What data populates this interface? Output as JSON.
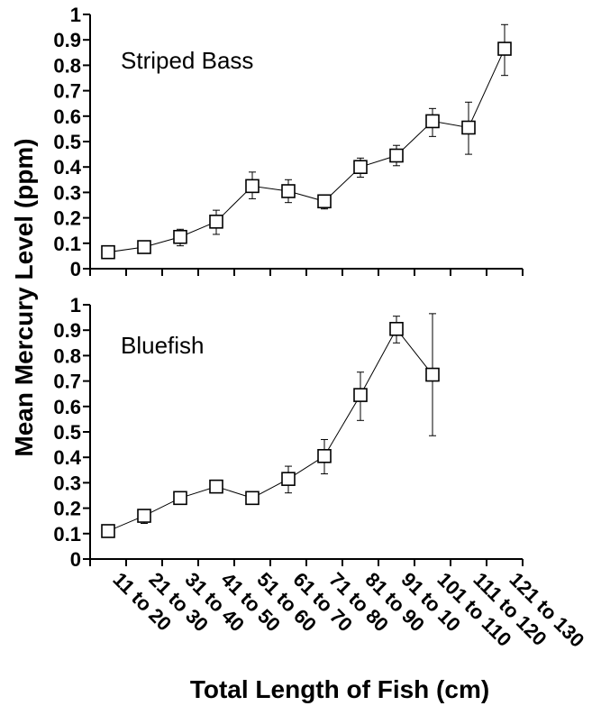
{
  "chart_data": [
    {
      "type": "line",
      "title": "Striped Bass",
      "categories": [
        "11 to 20",
        "21 to 30",
        "31 to 40",
        "41 to 50",
        "51 to 60",
        "61 to 70",
        "71 to 80",
        "81 to 90",
        "91 to 10",
        "101 to 110",
        "111 to 120",
        "121 to 130"
      ],
      "values": [
        0.065,
        0.085,
        0.125,
        0.185,
        0.325,
        0.305,
        0.265,
        0.4,
        0.445,
        0.58,
        0.555,
        0.865
      ],
      "error_low": [
        0.04,
        0.07,
        0.09,
        0.135,
        0.275,
        0.26,
        0.235,
        0.36,
        0.405,
        0.52,
        0.45,
        0.76
      ],
      "error_high": [
        0.085,
        0.1,
        0.155,
        0.23,
        0.38,
        0.35,
        0.285,
        0.435,
        0.485,
        0.63,
        0.655,
        0.96
      ],
      "ylim": [
        0,
        1
      ],
      "yticks": [
        "0",
        "0.1",
        "0.2",
        "0.3",
        "0.4",
        "0.5",
        "0.6",
        "0.7",
        "0.8",
        "0.9",
        "1"
      ],
      "grid": false,
      "marker": "open-square"
    },
    {
      "type": "line",
      "title": "Bluefish",
      "categories": [
        "11 to 20",
        "21 to 30",
        "31 to 40",
        "41 to 50",
        "51 to 60",
        "61 to 70",
        "71 to 80",
        "81 to 90",
        "91 to 10",
        "101 to 110",
        "111 to 120",
        "121 to 130"
      ],
      "values": [
        0.11,
        0.17,
        0.24,
        0.285,
        0.24,
        0.315,
        0.405,
        0.645,
        0.905,
        0.725,
        null,
        null
      ],
      "error_low": [
        0.09,
        0.14,
        0.225,
        0.265,
        0.225,
        0.26,
        0.335,
        0.545,
        0.85,
        0.485,
        null,
        null
      ],
      "error_high": [
        0.125,
        0.195,
        0.255,
        0.3,
        0.255,
        0.365,
        0.47,
        0.735,
        0.955,
        0.965,
        null,
        null
      ],
      "ylim": [
        0,
        1
      ],
      "yticks": [
        "0",
        "0.1",
        "0.2",
        "0.3",
        "0.4",
        "0.5",
        "0.6",
        "0.7",
        "0.8",
        "0.9",
        "1"
      ],
      "grid": false,
      "marker": "open-square"
    }
  ],
  "ylabel": "Mean Mercury Level (ppm)",
  "xlabel": "Total Length of Fish (cm)"
}
